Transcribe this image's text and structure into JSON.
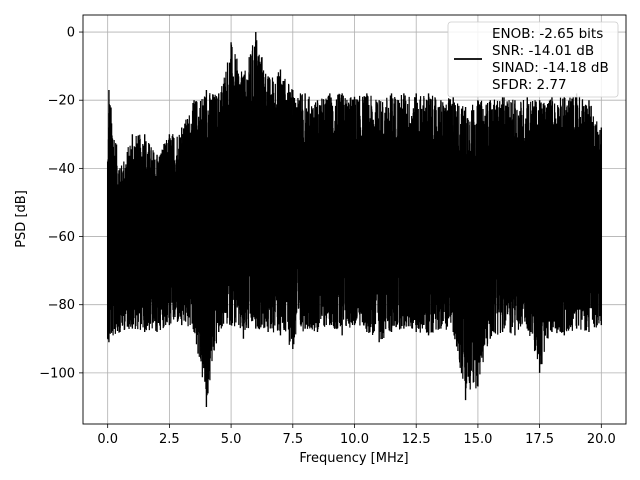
{
  "chart_data": {
    "type": "line",
    "title": "",
    "xlabel": "Frequency [MHz]",
    "ylabel": "PSD [dB]",
    "xlim": [
      -1.0,
      21.0
    ],
    "ylim": [
      -115,
      5
    ],
    "grid": true,
    "legend_position": "top-right",
    "x_ticks": [
      0.0,
      2.5,
      5.0,
      7.5,
      10.0,
      12.5,
      15.0,
      17.5,
      20.0
    ],
    "x_tick_labels": [
      "0.0",
      "2.5",
      "5.0",
      "7.5",
      "10.0",
      "12.5",
      "15.0",
      "17.5",
      "20.0"
    ],
    "y_ticks": [
      0,
      -20,
      -40,
      -60,
      -80,
      -100
    ],
    "y_tick_labels": [
      "0",
      "−20",
      "−40",
      "−60",
      "−80",
      "−100"
    ],
    "series_color": "#000000",
    "legend_entries": [
      "ENOB: -2.65 bits",
      "SNR: -14.01 dB",
      "SINAD: -14.18 dB",
      "SFDR: 2.77"
    ],
    "series": [
      {
        "x": [
          0.0,
          0.05,
          0.5,
          1.0,
          1.5,
          2.0,
          2.5,
          3.0,
          3.5,
          4.0,
          4.5,
          5.0,
          5.5,
          6.0,
          6.5,
          7.0,
          7.5,
          8.0,
          8.5,
          9.0,
          9.5,
          10.0,
          10.5,
          11.0,
          11.5,
          12.0,
          12.5,
          13.0,
          13.5,
          14.0,
          14.5,
          15.0,
          15.5,
          16.0,
          16.5,
          17.0,
          17.5,
          18.0,
          18.5,
          19.0,
          19.5,
          20.0
        ],
        "upper": [
          -38,
          -17,
          -40,
          -30,
          -30,
          -36,
          -30,
          -28,
          -20,
          -17,
          -18,
          -3,
          -13,
          0,
          -13,
          -11,
          -17,
          -18,
          -20,
          -18,
          -18,
          -19,
          -18,
          -20,
          -18,
          -18,
          -18,
          -18,
          -20,
          -19,
          -22,
          -20,
          -20,
          -19,
          -20,
          -19,
          -20,
          -19,
          -19,
          -18,
          -20,
          -28
        ],
        "lower": [
          -90,
          -91,
          -88,
          -87,
          -88,
          -88,
          -86,
          -86,
          -88,
          -110,
          -88,
          -86,
          -90,
          -87,
          -88,
          -89,
          -93,
          -87,
          -88,
          -86,
          -89,
          -86,
          -88,
          -91,
          -88,
          -87,
          -88,
          -89,
          -87,
          -88,
          -108,
          -104,
          -90,
          -88,
          -89,
          -87,
          -100,
          -88,
          -89,
          -87,
          -88,
          -86
        ],
        "median": [
          -62,
          -62,
          -62,
          -62,
          -62,
          -62,
          -60,
          -58,
          -56,
          -55,
          -52,
          -50,
          -48,
          -46,
          -48,
          -50,
          -52,
          -54,
          -54,
          -54,
          -54,
          -55,
          -54,
          -55,
          -54,
          -54,
          -54,
          -54,
          -54,
          -54,
          -54,
          -54,
          -54,
          -54,
          -54,
          -54,
          -54,
          -54,
          -54,
          -54,
          -54,
          -56
        ]
      }
    ]
  }
}
